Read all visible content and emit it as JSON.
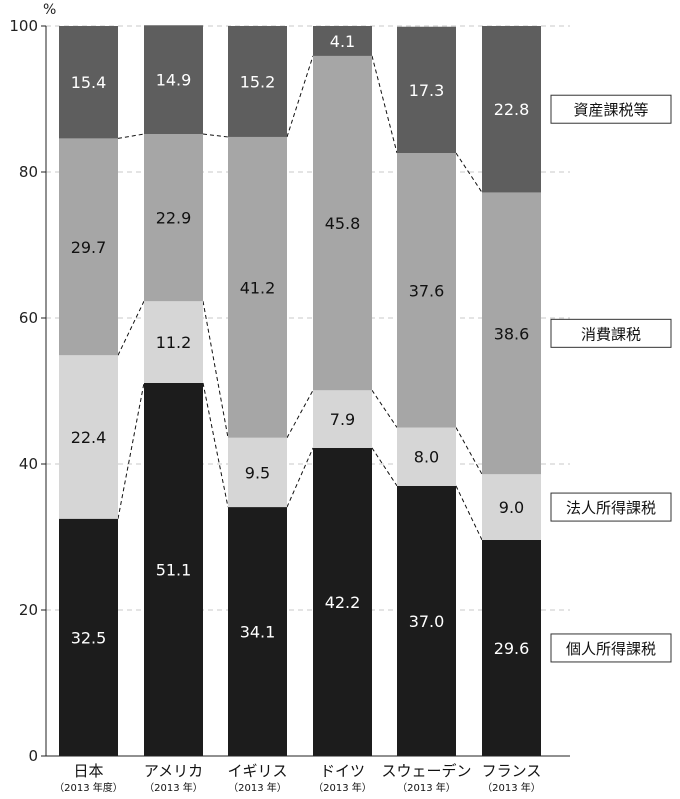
{
  "chart_data": {
    "type": "bar",
    "stacked": true,
    "unit": "%",
    "ylim": [
      0,
      100
    ],
    "yticks": [
      0,
      20,
      40,
      60,
      80,
      100
    ],
    "grid": "dashed horizontal lines",
    "categories": [
      "日本",
      "アメリカ",
      "イギリス",
      "ドイツ",
      "スウェーデン",
      "フランス"
    ],
    "category_notes": [
      "（2013 年度）",
      "（2013 年）",
      "（2013 年）",
      "（2013 年）",
      "（2013 年）",
      "（2013 年）"
    ],
    "series": [
      {
        "name": "個人所得課税",
        "color": "#1c1c1c",
        "label_color": "#ffffff",
        "values": [
          32.5,
          51.1,
          34.1,
          42.2,
          37.0,
          29.6
        ]
      },
      {
        "name": "法人所得課税",
        "color": "#d6d6d6",
        "label_color": "#111111",
        "values": [
          22.4,
          11.2,
          9.5,
          7.9,
          8.0,
          9.0
        ]
      },
      {
        "name": "消費課税",
        "color": "#a6a6a6",
        "label_color": "#111111",
        "values": [
          29.7,
          22.9,
          41.2,
          45.8,
          37.6,
          38.6
        ]
      },
      {
        "name": "資産課税等",
        "color": "#5e5e5e",
        "label_color": "#ffffff",
        "values": [
          15.4,
          14.9,
          15.2,
          4.1,
          17.3,
          22.8
        ]
      }
    ],
    "legend_placement": "right, beside the stack segments"
  }
}
